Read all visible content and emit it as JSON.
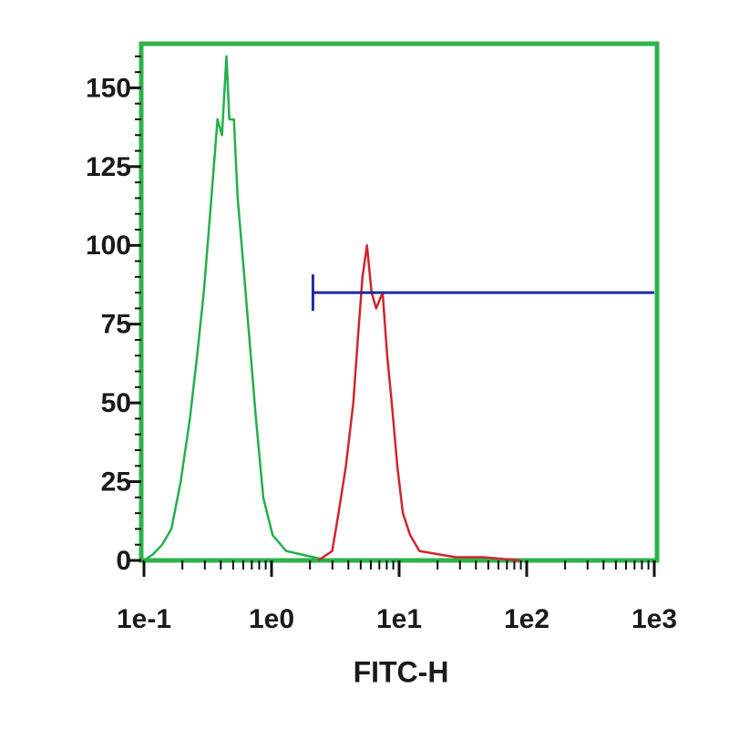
{
  "chart_data": {
    "type": "line",
    "xlabel": "FITC-H",
    "xscale": "log",
    "xlim": [
      0.1,
      1000
    ],
    "ylim": [
      0,
      164
    ],
    "xticks": [
      {
        "value": 0.1,
        "label": "1e-1"
      },
      {
        "value": 1,
        "label": "1e0"
      },
      {
        "value": 10,
        "label": "1e1"
      },
      {
        "value": 100,
        "label": "1e2"
      },
      {
        "value": 1000,
        "label": "1e3"
      }
    ],
    "xminorticks": [
      0.2,
      0.3,
      0.4,
      0.5,
      0.6,
      0.7,
      0.8,
      0.9,
      2,
      3,
      4,
      5,
      6,
      7,
      8,
      9,
      20,
      30,
      40,
      50,
      60,
      70,
      80,
      90,
      200,
      300,
      400,
      500,
      600,
      700,
      800,
      900
    ],
    "yticks": [
      0,
      25,
      50,
      75,
      100,
      125,
      150
    ],
    "yminorticks": [
      5,
      10,
      15,
      20,
      30,
      35,
      40,
      45,
      55,
      60,
      65,
      70,
      80,
      85,
      90,
      95,
      105,
      110,
      115,
      120,
      130,
      135,
      140,
      145,
      155,
      160
    ],
    "frame_color": "#2db34a",
    "series": [
      {
        "color": "#22b04a",
        "x": [
          0.1,
          0.118,
          0.139,
          0.164,
          0.194,
          0.229,
          0.261,
          0.294,
          0.33,
          0.377,
          0.409,
          0.443,
          0.467,
          0.507,
          0.542,
          0.598,
          0.672,
          0.755,
          0.861,
          1.02,
          1.3,
          1.67,
          2.14,
          2.75
        ],
        "values": [
          0,
          2,
          5,
          10,
          25,
          45,
          65,
          85,
          110,
          140,
          135,
          160,
          140,
          140,
          115,
          95,
          70,
          45,
          20,
          8,
          3,
          2,
          1,
          0
        ]
      },
      {
        "color": "#d0262a",
        "x": [
          2.33,
          2.99,
          3.35,
          3.83,
          4.37,
          4.74,
          5.16,
          5.6,
          6.09,
          6.61,
          7.43,
          8.06,
          8.75,
          9.68,
          10.7,
          12.2,
          14.4,
          20,
          27.9,
          45.9,
          89.1
        ],
        "values": [
          0,
          3,
          15,
          30,
          50,
          70,
          90,
          100,
          85,
          80,
          85,
          65,
          50,
          30,
          15,
          8,
          3,
          2,
          1,
          1,
          0
        ]
      }
    ],
    "gate": {
      "x": [
        2.11,
        1000
      ],
      "y": 85,
      "color": "#1f2a9c"
    }
  }
}
